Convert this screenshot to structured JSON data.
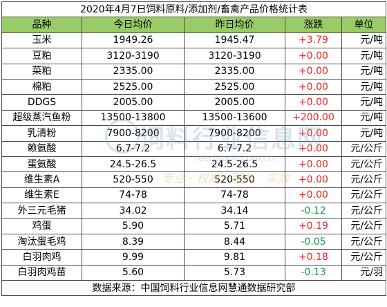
{
  "title": "2020年4月7日饲料原料/添加剂/畜禽产品价格统计表",
  "headers": [
    "品种",
    "今日均价",
    "昨日均价",
    "涨跌",
    "单位"
  ],
  "rows": [
    {
      "name": "玉米",
      "today": "1949.26",
      "yesterday": "1945.47",
      "change": "+3.79",
      "dir": "up",
      "unit": "元/吨"
    },
    {
      "name": "豆粕",
      "today": "3120-3190",
      "yesterday": "3120-3190",
      "change": "+0.00",
      "dir": "up",
      "unit": "元/吨"
    },
    {
      "name": "菜粕",
      "today": "2335.00",
      "yesterday": "2335.00",
      "change": "+0.00",
      "dir": "up",
      "unit": "元/吨"
    },
    {
      "name": "棉粕",
      "today": "2525.00",
      "yesterday": "2525.00",
      "change": "+0.00",
      "dir": "up",
      "unit": "元/吨"
    },
    {
      "name": "DDGS",
      "today": "2005.00",
      "yesterday": "2005.00",
      "change": "+0.00",
      "dir": "up",
      "unit": "元/吨"
    },
    {
      "name": "超级蒸汽鱼粉",
      "today": "13500-13800",
      "yesterday": "13500-13600",
      "change": "+200.00",
      "dir": "up",
      "unit": "元/吨"
    },
    {
      "name": "乳清粉",
      "today": "7900-8200",
      "yesterday": "7900-8200",
      "change": "+0.00",
      "dir": "up",
      "unit": "元/吨"
    },
    {
      "name": "赖氨酸",
      "today": "6.7-7.2",
      "yesterday": "6.7-7.2",
      "change": "+0.00",
      "dir": "up",
      "unit": "元/公斤"
    },
    {
      "name": "蛋氨酸",
      "today": "24.5-26.5",
      "yesterday": "24.5-26.5",
      "change": "+0.00",
      "dir": "up",
      "unit": "元/公斤"
    },
    {
      "name": "维生素A",
      "today": "520-550",
      "yesterday": "520-550",
      "change": "+0.00",
      "dir": "up",
      "unit": "元/公斤"
    },
    {
      "name": "维生素E",
      "today": "74-78",
      "yesterday": "74-78",
      "change": "+0.00",
      "dir": "up",
      "unit": "元/公斤"
    },
    {
      "name": "外三元毛猪",
      "today": "34.02",
      "yesterday": "34.14",
      "change": "-0.12",
      "dir": "down",
      "unit": "元/公斤"
    },
    {
      "name": "鸡蛋",
      "today": "5.90",
      "yesterday": "5.71",
      "change": "+0.19",
      "dir": "up",
      "unit": "元/公斤"
    },
    {
      "name": "淘汰蛋毛鸡",
      "today": "8.39",
      "yesterday": "8.44",
      "change": "-0.05",
      "dir": "down",
      "unit": "元/公斤"
    },
    {
      "name": "白羽肉鸡",
      "today": "9.99",
      "yesterday": "9.81",
      "change": "+0.18",
      "dir": "up",
      "unit": "元/公斤"
    },
    {
      "name": "白羽肉鸡苗",
      "today": "5.60",
      "yesterday": "5.73",
      "change": "-0.13",
      "dir": "down",
      "unit": "元/羽"
    }
  ],
  "source": "数据来源：中国饲料行业信息网慧通数据研究部",
  "watermark": {
    "text": "饲料行业信息网",
    "url": "feedtrade.com.cn",
    "slogan": "专业 · 权威 · 服务 · 实效"
  },
  "colors": {
    "header_bg": "#99cc66",
    "up": "#ff1a1a",
    "down": "#119944"
  }
}
